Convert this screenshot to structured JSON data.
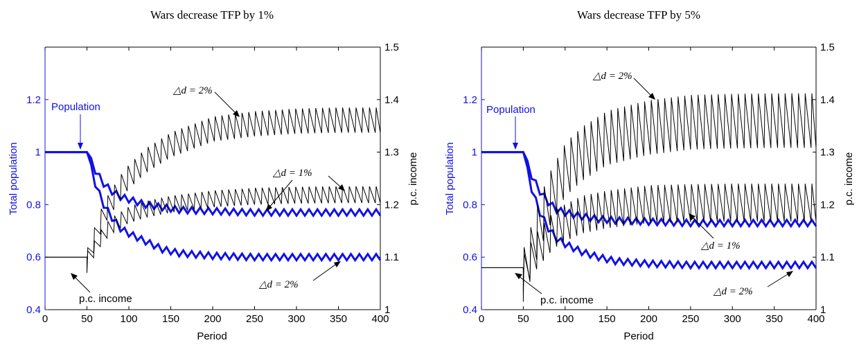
{
  "colors": {
    "population": "#1010e6",
    "income": "#000000",
    "axis": "#000000"
  },
  "chart_data": [
    {
      "type": "line",
      "title": "Wars decrease TFP by 1%",
      "xlabel": "Period",
      "ylabel_left": "Total population",
      "ylabel_right": "p.c. income",
      "xlim": [
        0,
        400
      ],
      "ylim_left": [
        0.4,
        1.4
      ],
      "ylim_right": [
        1,
        1.5
      ],
      "xticks": [
        "0",
        "50",
        "100",
        "150",
        "200",
        "250",
        "300",
        "350",
        "400"
      ],
      "yticks_left": [
        "0.4",
        "0.6",
        "0.8",
        "1",
        "1.2"
      ],
      "yticks_right": [
        "1",
        "1.1",
        "1.2",
        "1.3",
        "1.4",
        "1.5"
      ],
      "population_series": [
        {
          "x": [
            0,
            50,
            60,
            70,
            80,
            90,
            100,
            120,
            140,
            160,
            200,
            250,
            300,
            400
          ],
          "y": [
            1.0,
            1.0,
            0.93,
            0.88,
            0.85,
            0.83,
            0.82,
            0.8,
            0.79,
            0.78,
            0.775,
            0.77,
            0.77,
            0.77
          ],
          "osc": 0.012
        },
        {
          "x": [
            0,
            50,
            60,
            70,
            80,
            90,
            100,
            120,
            140,
            160,
            200,
            250,
            300,
            400
          ],
          "y": [
            1.0,
            1.0,
            0.88,
            0.8,
            0.75,
            0.71,
            0.69,
            0.66,
            0.63,
            0.615,
            0.605,
            0.6,
            0.6,
            0.6
          ],
          "osc": 0.012
        }
      ],
      "income_series": [
        {
          "x": [
            0,
            50,
            55,
            60,
            70,
            80,
            90,
            100,
            120,
            150,
            200,
            250,
            300,
            350,
            400
          ],
          "y": [
            1.1,
            1.1,
            1.12,
            1.15,
            1.19,
            1.215,
            1.24,
            1.26,
            1.29,
            1.32,
            1.35,
            1.36,
            1.365,
            1.367,
            1.367
          ],
          "osc": 0.03
        },
        {
          "x": [
            0,
            50,
            55,
            60,
            70,
            80,
            90,
            100,
            120,
            150,
            200,
            250,
            300,
            350,
            400
          ],
          "y": [
            1.1,
            1.1,
            1.11,
            1.125,
            1.15,
            1.165,
            1.175,
            1.185,
            1.195,
            1.205,
            1.215,
            1.22,
            1.222,
            1.223,
            1.223
          ],
          "osc": 0.02
        }
      ],
      "annotations": {
        "population_label": "Population",
        "income_label": "p.c. income",
        "d_upper": "△d = 2%",
        "d_middle": "△d = 1%",
        "d_lower": "△d = 2%"
      }
    },
    {
      "type": "line",
      "title": "Wars decrease TFP by 5%",
      "xlabel": "Period",
      "ylabel_left": "Total population",
      "ylabel_right": "p.c. income",
      "xlim": [
        0,
        400
      ],
      "ylim_left": [
        0.4,
        1.4
      ],
      "ylim_right": [
        1,
        1.5
      ],
      "xticks": [
        "0",
        "50",
        "100",
        "150",
        "200",
        "250",
        "300",
        "350",
        "400"
      ],
      "yticks_left": [
        "0.4",
        "0.6",
        "0.8",
        "1",
        "1.2"
      ],
      "yticks_right": [
        "1",
        "1.1",
        "1.2",
        "1.3",
        "1.4",
        "1.5"
      ],
      "population_series": [
        {
          "x": [
            0,
            50,
            60,
            70,
            80,
            90,
            100,
            120,
            140,
            160,
            200,
            250,
            300,
            400
          ],
          "y": [
            1.0,
            1.0,
            0.91,
            0.85,
            0.81,
            0.78,
            0.77,
            0.755,
            0.745,
            0.74,
            0.735,
            0.73,
            0.73,
            0.73
          ],
          "osc": 0.012
        },
        {
          "x": [
            0,
            50,
            60,
            70,
            80,
            90,
            100,
            120,
            140,
            160,
            200,
            250,
            300,
            400
          ],
          "y": [
            1.0,
            1.0,
            0.86,
            0.77,
            0.71,
            0.67,
            0.65,
            0.62,
            0.6,
            0.585,
            0.575,
            0.57,
            0.57,
            0.57
          ],
          "osc": 0.012
        }
      ],
      "income_series": [
        {
          "x": [
            0,
            50,
            55,
            60,
            70,
            80,
            90,
            100,
            120,
            150,
            200,
            250,
            300,
            350,
            400
          ],
          "y": [
            1.08,
            1.08,
            1.1,
            1.13,
            1.18,
            1.22,
            1.25,
            1.28,
            1.31,
            1.34,
            1.36,
            1.37,
            1.372,
            1.373,
            1.373
          ],
          "osc": 0.065
        },
        {
          "x": [
            0,
            50,
            55,
            60,
            70,
            80,
            90,
            100,
            120,
            150,
            200,
            250,
            300,
            350,
            400
          ],
          "y": [
            1.08,
            1.08,
            1.09,
            1.11,
            1.13,
            1.15,
            1.165,
            1.175,
            1.19,
            1.2,
            1.21,
            1.212,
            1.213,
            1.213,
            1.213
          ],
          "osc": 0.045
        }
      ],
      "annotations": {
        "population_label": "Population",
        "income_label": "p.c. income",
        "d_upper": "△d = 2%",
        "d_middle": "△d = 1%",
        "d_lower": "△d = 2%"
      }
    }
  ]
}
